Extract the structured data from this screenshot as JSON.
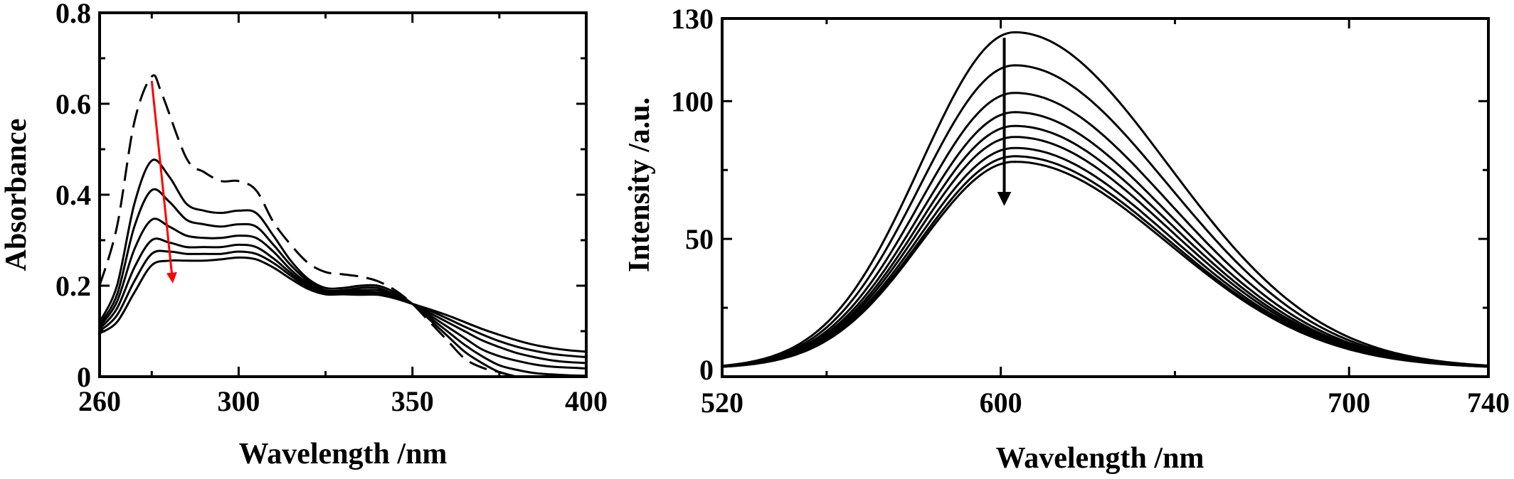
{
  "chart_data": [
    {
      "type": "line",
      "xlabel": "Wavelength /nm",
      "ylabel": "Absorbance",
      "xlim": [
        260,
        400
      ],
      "ylim": [
        0,
        0.8
      ],
      "xticks": [
        260,
        300,
        350,
        400
      ],
      "xtick_labels": [
        "260",
        "300",
        "350",
        "400"
      ],
      "yticks": [
        0,
        0.2,
        0.4,
        0.6,
        0.8
      ],
      "ytick_labels": [
        "0",
        "0.2",
        "0.4",
        "0.6",
        "0.8"
      ],
      "minor_xticks": [
        275,
        325,
        375
      ],
      "grid": false,
      "series": [
        {
          "style": "dashed",
          "color": "#000000",
          "x": [
            260,
            265,
            270,
            275,
            278,
            285,
            290,
            295,
            300,
            305,
            310,
            315,
            320,
            325,
            330,
            335,
            340,
            345,
            350,
            355,
            360,
            365,
            370,
            375,
            380,
            385,
            390,
            395,
            400
          ],
          "y": [
            0.2,
            0.33,
            0.56,
            0.66,
            0.62,
            0.48,
            0.45,
            0.43,
            0.43,
            0.41,
            0.34,
            0.29,
            0.25,
            0.23,
            0.225,
            0.22,
            0.21,
            0.19,
            0.16,
            0.12,
            0.08,
            0.04,
            0.02,
            0.01,
            0.0,
            -0.005,
            -0.01,
            -0.01,
            -0.01
          ]
        },
        {
          "style": "solid",
          "color": "#000000",
          "x": [
            260,
            265,
            270,
            275,
            280,
            285,
            290,
            295,
            300,
            305,
            310,
            315,
            320,
            325,
            330,
            335,
            340,
            345,
            350,
            355,
            360,
            365,
            370,
            375,
            380,
            385,
            390,
            395,
            400
          ],
          "y": [
            0.12,
            0.2,
            0.38,
            0.475,
            0.44,
            0.38,
            0.365,
            0.36,
            0.365,
            0.36,
            0.31,
            0.255,
            0.215,
            0.195,
            0.195,
            0.2,
            0.2,
            0.185,
            0.16,
            0.125,
            0.09,
            0.055,
            0.03,
            0.01,
            0.0,
            -0.01,
            -0.01,
            -0.01,
            -0.01
          ]
        },
        {
          "style": "solid",
          "color": "#000000",
          "x": [
            260,
            265,
            270,
            275,
            280,
            285,
            290,
            295,
            300,
            305,
            310,
            315,
            320,
            325,
            330,
            335,
            340,
            345,
            350,
            355,
            360,
            365,
            370,
            375,
            380,
            385,
            390,
            395,
            400
          ],
          "y": [
            0.115,
            0.18,
            0.33,
            0.41,
            0.385,
            0.345,
            0.335,
            0.33,
            0.335,
            0.33,
            0.29,
            0.245,
            0.21,
            0.19,
            0.19,
            0.195,
            0.195,
            0.18,
            0.16,
            0.13,
            0.1,
            0.07,
            0.045,
            0.025,
            0.015,
            0.008,
            0.005,
            0.003,
            0.002
          ]
        },
        {
          "style": "solid",
          "color": "#000000",
          "x": [
            260,
            265,
            270,
            275,
            280,
            285,
            290,
            295,
            300,
            305,
            310,
            315,
            320,
            325,
            330,
            335,
            340,
            345,
            350,
            355,
            360,
            365,
            370,
            375,
            380,
            385,
            390,
            395,
            400
          ],
          "y": [
            0.11,
            0.165,
            0.28,
            0.345,
            0.33,
            0.31,
            0.305,
            0.305,
            0.31,
            0.305,
            0.275,
            0.235,
            0.205,
            0.188,
            0.188,
            0.19,
            0.19,
            0.178,
            0.16,
            0.135,
            0.11,
            0.085,
            0.06,
            0.045,
            0.035,
            0.027,
            0.022,
            0.02,
            0.018
          ]
        },
        {
          "style": "solid",
          "color": "#000000",
          "x": [
            260,
            265,
            270,
            275,
            280,
            285,
            290,
            295,
            300,
            305,
            310,
            315,
            320,
            325,
            330,
            335,
            340,
            345,
            350,
            355,
            360,
            365,
            370,
            375,
            380,
            385,
            390,
            395,
            400
          ],
          "y": [
            0.105,
            0.15,
            0.24,
            0.3,
            0.295,
            0.285,
            0.285,
            0.285,
            0.29,
            0.285,
            0.26,
            0.228,
            0.2,
            0.185,
            0.185,
            0.186,
            0.185,
            0.175,
            0.16,
            0.14,
            0.12,
            0.1,
            0.08,
            0.065,
            0.052,
            0.043,
            0.036,
            0.032,
            0.03
          ]
        },
        {
          "style": "solid",
          "color": "#000000",
          "x": [
            260,
            265,
            270,
            275,
            280,
            285,
            290,
            295,
            300,
            305,
            310,
            315,
            320,
            325,
            330,
            335,
            340,
            345,
            350,
            355,
            360,
            365,
            370,
            375,
            380,
            385,
            390,
            395,
            400
          ],
          "y": [
            0.1,
            0.135,
            0.21,
            0.27,
            0.275,
            0.27,
            0.27,
            0.27,
            0.275,
            0.27,
            0.25,
            0.222,
            0.196,
            0.183,
            0.183,
            0.183,
            0.182,
            0.173,
            0.16,
            0.145,
            0.128,
            0.11,
            0.093,
            0.078,
            0.066,
            0.057,
            0.05,
            0.046,
            0.043
          ]
        },
        {
          "style": "solid",
          "color": "#000000",
          "x": [
            260,
            265,
            270,
            275,
            280,
            285,
            290,
            295,
            300,
            305,
            310,
            315,
            320,
            325,
            330,
            335,
            340,
            345,
            350,
            355,
            360,
            365,
            370,
            375,
            380,
            385,
            390,
            395,
            400
          ],
          "y": [
            0.095,
            0.12,
            0.185,
            0.245,
            0.255,
            0.255,
            0.255,
            0.258,
            0.262,
            0.258,
            0.24,
            0.215,
            0.193,
            0.181,
            0.181,
            0.18,
            0.18,
            0.172,
            0.16,
            0.148,
            0.135,
            0.12,
            0.105,
            0.092,
            0.08,
            0.07,
            0.063,
            0.058,
            0.055
          ]
        }
      ],
      "arrow": {
        "color": "#ff0000",
        "from": [
          275,
          0.65
        ],
        "to": [
          281,
          0.21
        ]
      }
    },
    {
      "type": "line",
      "xlabel": "Wavelength /nm",
      "ylabel": "Intensity /a.u.",
      "xlim": [
        520,
        740
      ],
      "ylim": [
        0,
        130
      ],
      "xticks": [
        520,
        600,
        700,
        740
      ],
      "xtick_labels": [
        "520",
        "600",
        "700",
        "740"
      ],
      "yticks": [
        50,
        100,
        130
      ],
      "ytick_labels": [
        "50",
        "100",
        "130"
      ],
      "y_origin_label": "0",
      "minor_xticks": [
        550,
        650
      ],
      "minor_yticks": [
        25,
        75
      ],
      "grid": false,
      "series": [
        {
          "style": "solid",
          "color": "#ff0000",
          "peak_x": 604,
          "peak_y": 125
        },
        {
          "style": "solid",
          "color": "#000000",
          "peak_x": 604,
          "peak_y": 113
        },
        {
          "style": "solid",
          "color": "#000000",
          "peak_x": 604,
          "peak_y": 103
        },
        {
          "style": "solid",
          "color": "#000000",
          "peak_x": 604,
          "peak_y": 96
        },
        {
          "style": "solid",
          "color": "#000000",
          "peak_x": 604,
          "peak_y": 91
        },
        {
          "style": "solid",
          "color": "#000000",
          "peak_x": 604,
          "peak_y": 87
        },
        {
          "style": "solid",
          "color": "#000000",
          "peak_x": 604,
          "peak_y": 83
        },
        {
          "style": "solid",
          "color": "#000000",
          "peak_x": 604,
          "peak_y": 80
        },
        {
          "style": "solid",
          "color": "#000000",
          "peak_x": 604,
          "peak_y": 78
        }
      ],
      "arrow": {
        "color": "#000000",
        "from": [
          601,
          123
        ],
        "to": [
          601,
          63
        ]
      }
    }
  ]
}
